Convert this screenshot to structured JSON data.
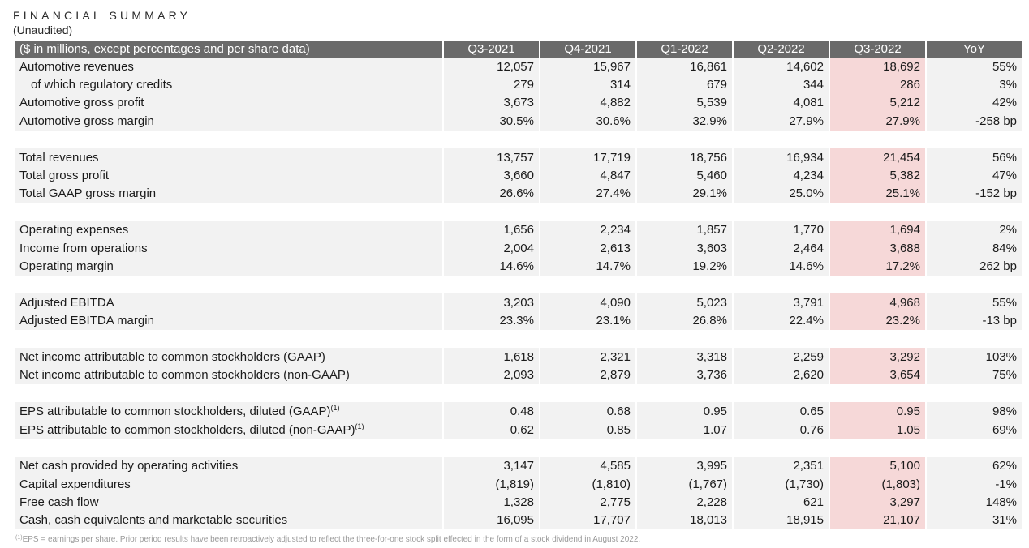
{
  "title": "FINANCIAL SUMMARY",
  "subtitle": "(Unaudited)",
  "table": {
    "columns": [
      "($ in millions, except percentages and per share data)",
      "Q3-2021",
      "Q4-2021",
      "Q1-2022",
      "Q2-2022",
      "Q3-2022",
      "YoY"
    ],
    "rows": [
      {
        "label": "Automotive revenues",
        "values": [
          "12,057",
          "15,967",
          "16,861",
          "14,602",
          "18,692",
          "55%"
        ]
      },
      {
        "label": "of which regulatory credits",
        "indent": true,
        "values": [
          "279",
          "314",
          "679",
          "344",
          "286",
          "3%"
        ]
      },
      {
        "label": "Automotive gross profit",
        "values": [
          "3,673",
          "4,882",
          "5,539",
          "4,081",
          "5,212",
          "42%"
        ]
      },
      {
        "label": "Automotive gross margin",
        "values": [
          "30.5%",
          "30.6%",
          "32.9%",
          "27.9%",
          "27.9%",
          "-258 bp"
        ]
      },
      {
        "spacer": true
      },
      {
        "label": "Total revenues",
        "values": [
          "13,757",
          "17,719",
          "18,756",
          "16,934",
          "21,454",
          "56%"
        ]
      },
      {
        "label": "Total gross profit",
        "values": [
          "3,660",
          "4,847",
          "5,460",
          "4,234",
          "5,382",
          "47%"
        ]
      },
      {
        "label": "Total GAAP gross margin",
        "values": [
          "26.6%",
          "27.4%",
          "29.1%",
          "25.0%",
          "25.1%",
          "-152 bp"
        ]
      },
      {
        "spacer": true
      },
      {
        "label": "Operating expenses",
        "values": [
          "1,656",
          "2,234",
          "1,857",
          "1,770",
          "1,694",
          "2%"
        ]
      },
      {
        "label": "Income from operations",
        "values": [
          "2,004",
          "2,613",
          "3,603",
          "2,464",
          "3,688",
          "84%"
        ]
      },
      {
        "label": "Operating margin",
        "values": [
          "14.6%",
          "14.7%",
          "19.2%",
          "14.6%",
          "17.2%",
          "262 bp"
        ]
      },
      {
        "spacer": true
      },
      {
        "label": "Adjusted EBITDA",
        "values": [
          "3,203",
          "4,090",
          "5,023",
          "3,791",
          "4,968",
          "55%"
        ]
      },
      {
        "label": "Adjusted EBITDA margin",
        "values": [
          "23.3%",
          "23.1%",
          "26.8%",
          "22.4%",
          "23.2%",
          "-13 bp"
        ]
      },
      {
        "spacer": true
      },
      {
        "label": "Net income attributable to common stockholders (GAAP)",
        "values": [
          "1,618",
          "2,321",
          "3,318",
          "2,259",
          "3,292",
          "103%"
        ]
      },
      {
        "label": "Net income attributable to common stockholders (non-GAAP)",
        "values": [
          "2,093",
          "2,879",
          "3,736",
          "2,620",
          "3,654",
          "75%"
        ]
      },
      {
        "spacer": true
      },
      {
        "label": "EPS attributable to common stockholders, diluted (GAAP)",
        "footnote": "(1)",
        "values": [
          "0.48",
          "0.68",
          "0.95",
          "0.65",
          "0.95",
          "98%"
        ]
      },
      {
        "label": "EPS attributable to common stockholders, diluted (non-GAAP)",
        "footnote": "(1)",
        "values": [
          "0.62",
          "0.85",
          "1.07",
          "0.76",
          "1.05",
          "69%"
        ]
      },
      {
        "spacer": true
      },
      {
        "label": "Net cash provided by operating activities",
        "values": [
          "3,147",
          "4,585",
          "3,995",
          "2,351",
          "5,100",
          "62%"
        ]
      },
      {
        "label": "Capital expenditures",
        "values": [
          "(1,819)",
          "(1,810)",
          "(1,767)",
          "(1,730)",
          "(1,803)",
          "-1%"
        ]
      },
      {
        "label": "Free cash flow",
        "values": [
          "1,328",
          "2,775",
          "2,228",
          "621",
          "3,297",
          "148%"
        ]
      },
      {
        "label": "Cash, cash equivalents and marketable securities",
        "values": [
          "16,095",
          "17,707",
          "18,013",
          "18,915",
          "21,107",
          "31%"
        ]
      }
    ]
  },
  "footnote": {
    "marker": "(1)",
    "text": "EPS = earnings per share. Prior period results have been retroactively adjusted to reflect the three-for-one stock split effected in the form of a stock dividend in August 2022."
  },
  "colors": {
    "header_bg": "#6a6a6a",
    "row_shade": "#f2f2f2",
    "highlight_column": "#f6d8d8"
  }
}
